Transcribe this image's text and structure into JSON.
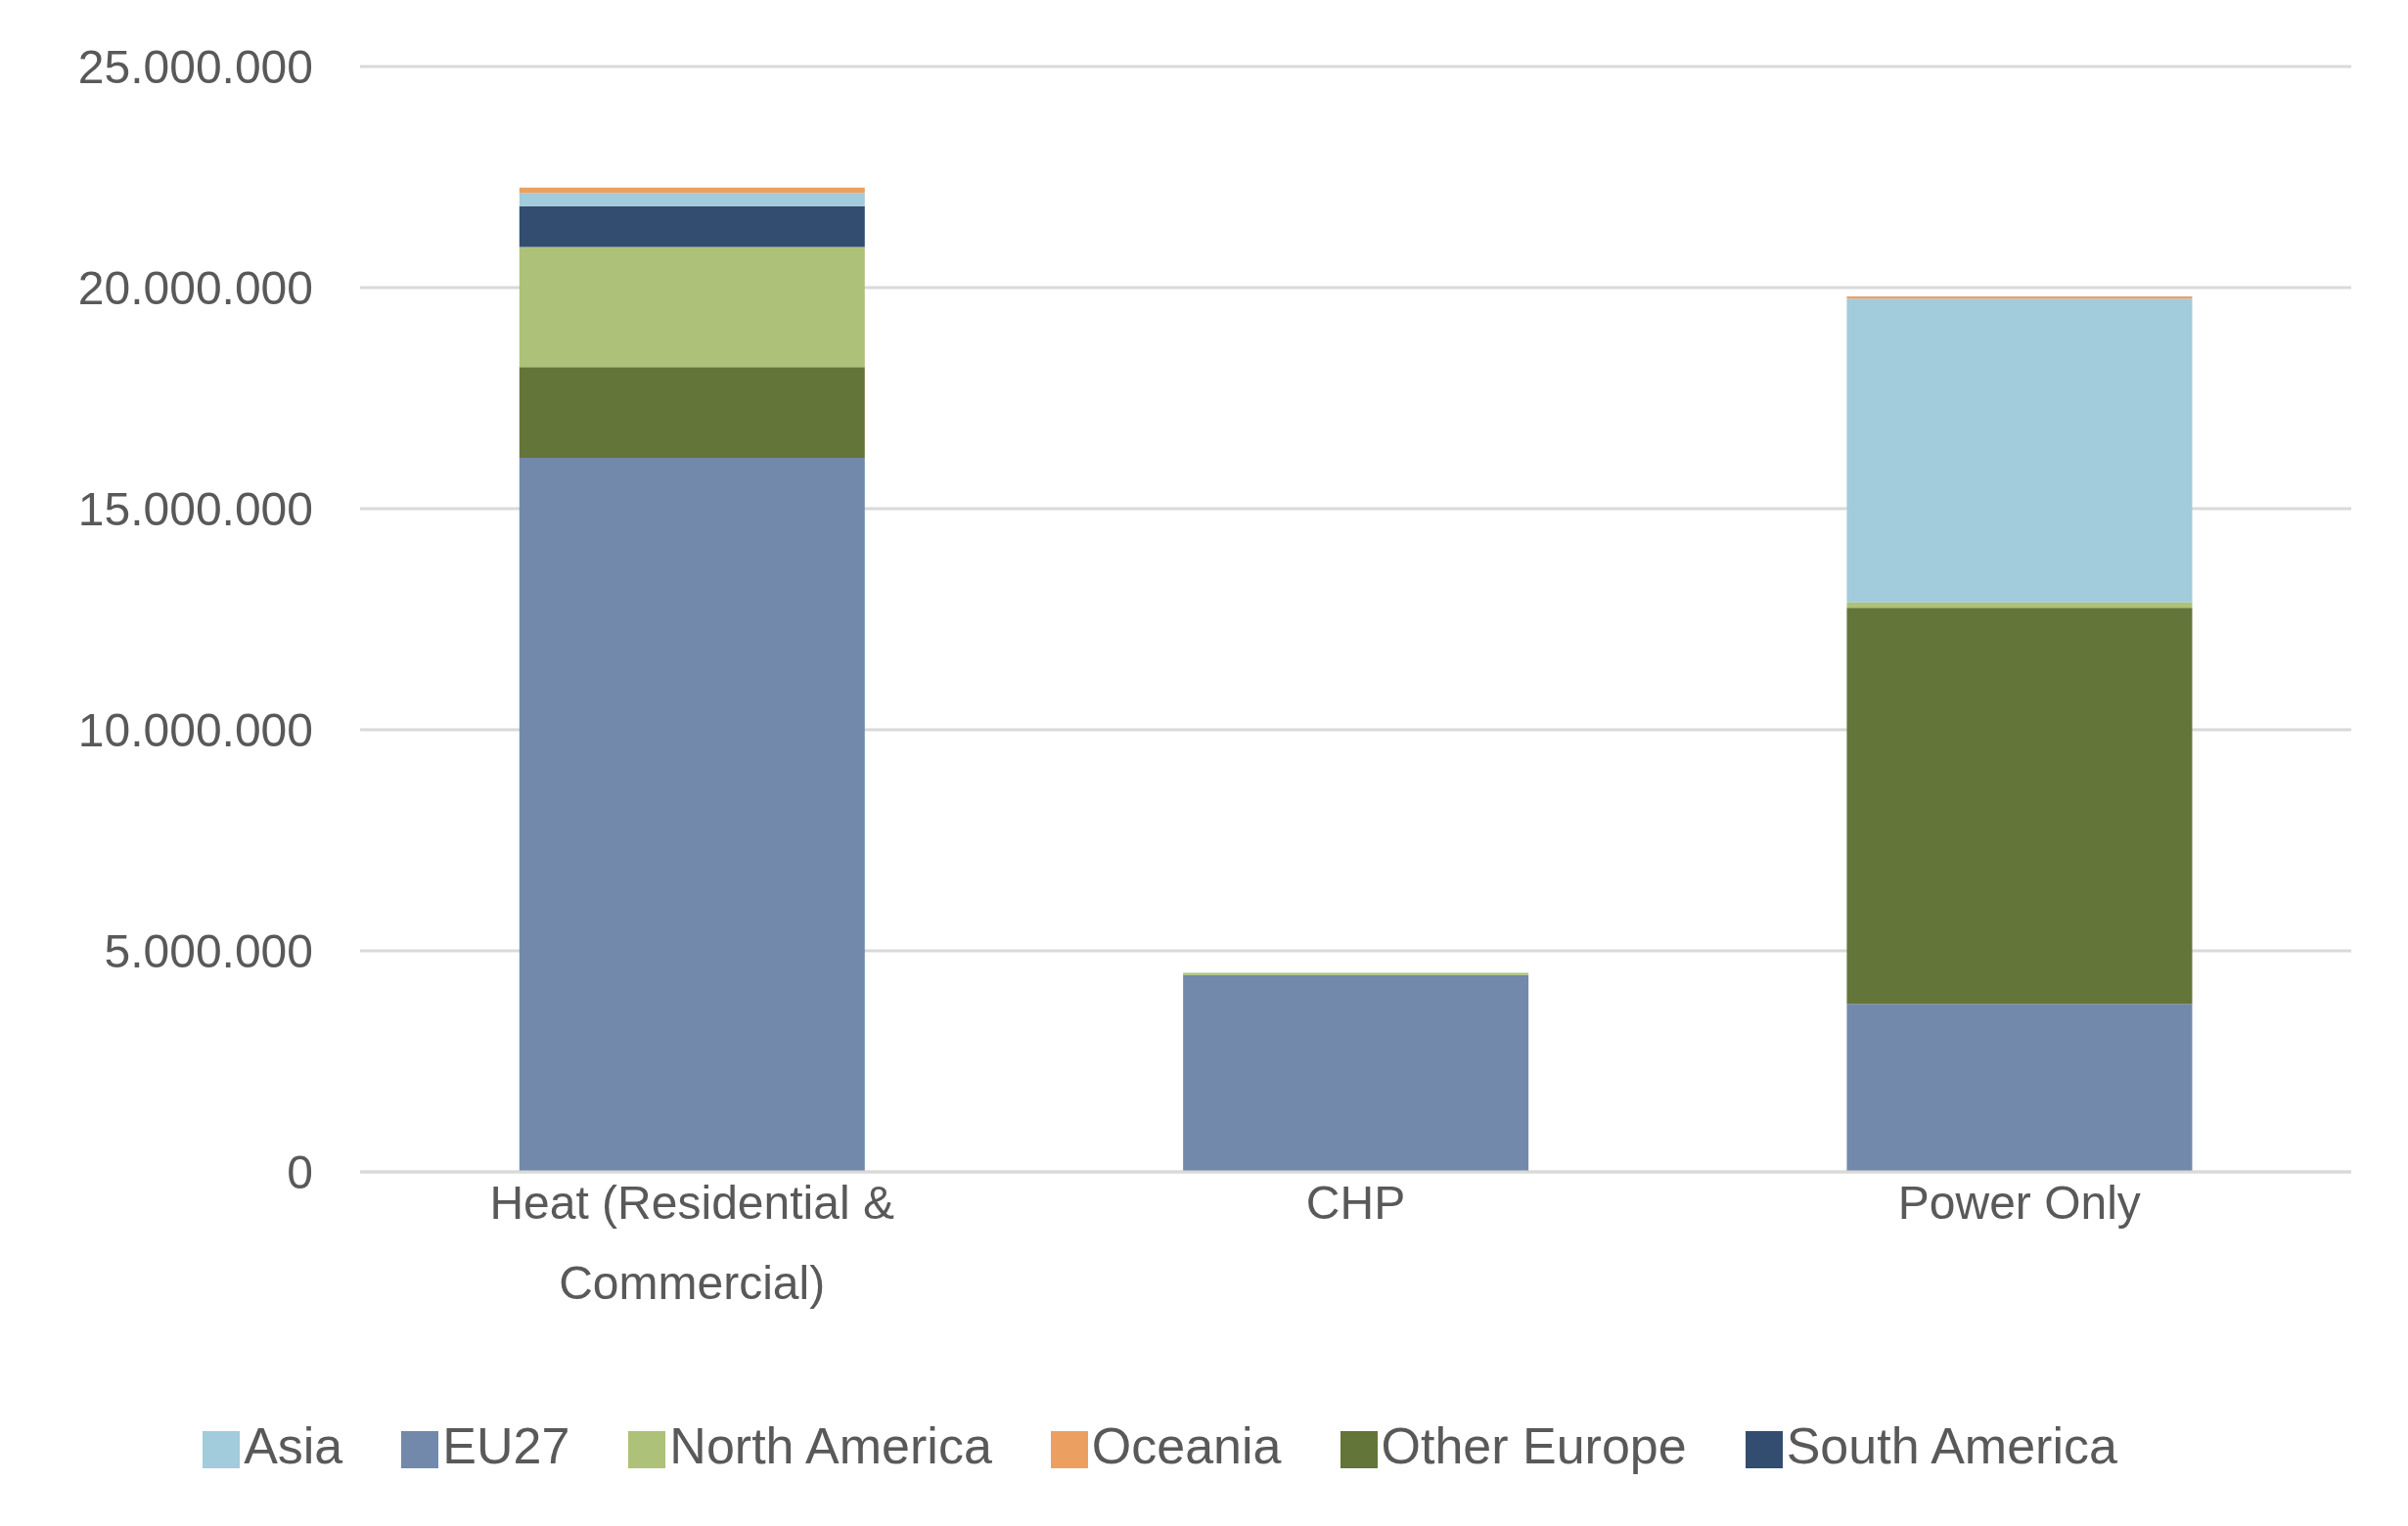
{
  "chart_data": {
    "type": "bar",
    "stacked": true,
    "categories": [
      "Heat (Residential & Commercial)",
      "CHP",
      "Power Only"
    ],
    "series": [
      {
        "name": "EU27",
        "color": "#7289ab",
        "values": [
          16150000,
          4450000,
          3800000
        ]
      },
      {
        "name": "Other Europe",
        "color": "#647539",
        "values": [
          2050000,
          0,
          8960000
        ]
      },
      {
        "name": "North America",
        "color": "#adc178",
        "values": [
          2720000,
          50000,
          120000
        ]
      },
      {
        "name": "South America",
        "color": "#334d70",
        "values": [
          920000,
          0,
          0
        ]
      },
      {
        "name": "Asia",
        "color": "#a2cbdb",
        "values": [
          300000,
          0,
          6870000
        ]
      },
      {
        "name": "Oceania",
        "color": "#eba062",
        "values": [
          120000,
          0,
          50000
        ]
      }
    ],
    "ylim": [
      0,
      25000000
    ],
    "yticks": [
      {
        "value": 0,
        "label": "0"
      },
      {
        "value": 5000000,
        "label": "5.000.000"
      },
      {
        "value": 10000000,
        "label": "10.000.000"
      },
      {
        "value": 15000000,
        "label": "15.000.000"
      },
      {
        "value": 20000000,
        "label": "20.000.000"
      },
      {
        "value": 25000000,
        "label": "25.000.000"
      }
    ],
    "grid": "y",
    "legend": "bottom"
  }
}
